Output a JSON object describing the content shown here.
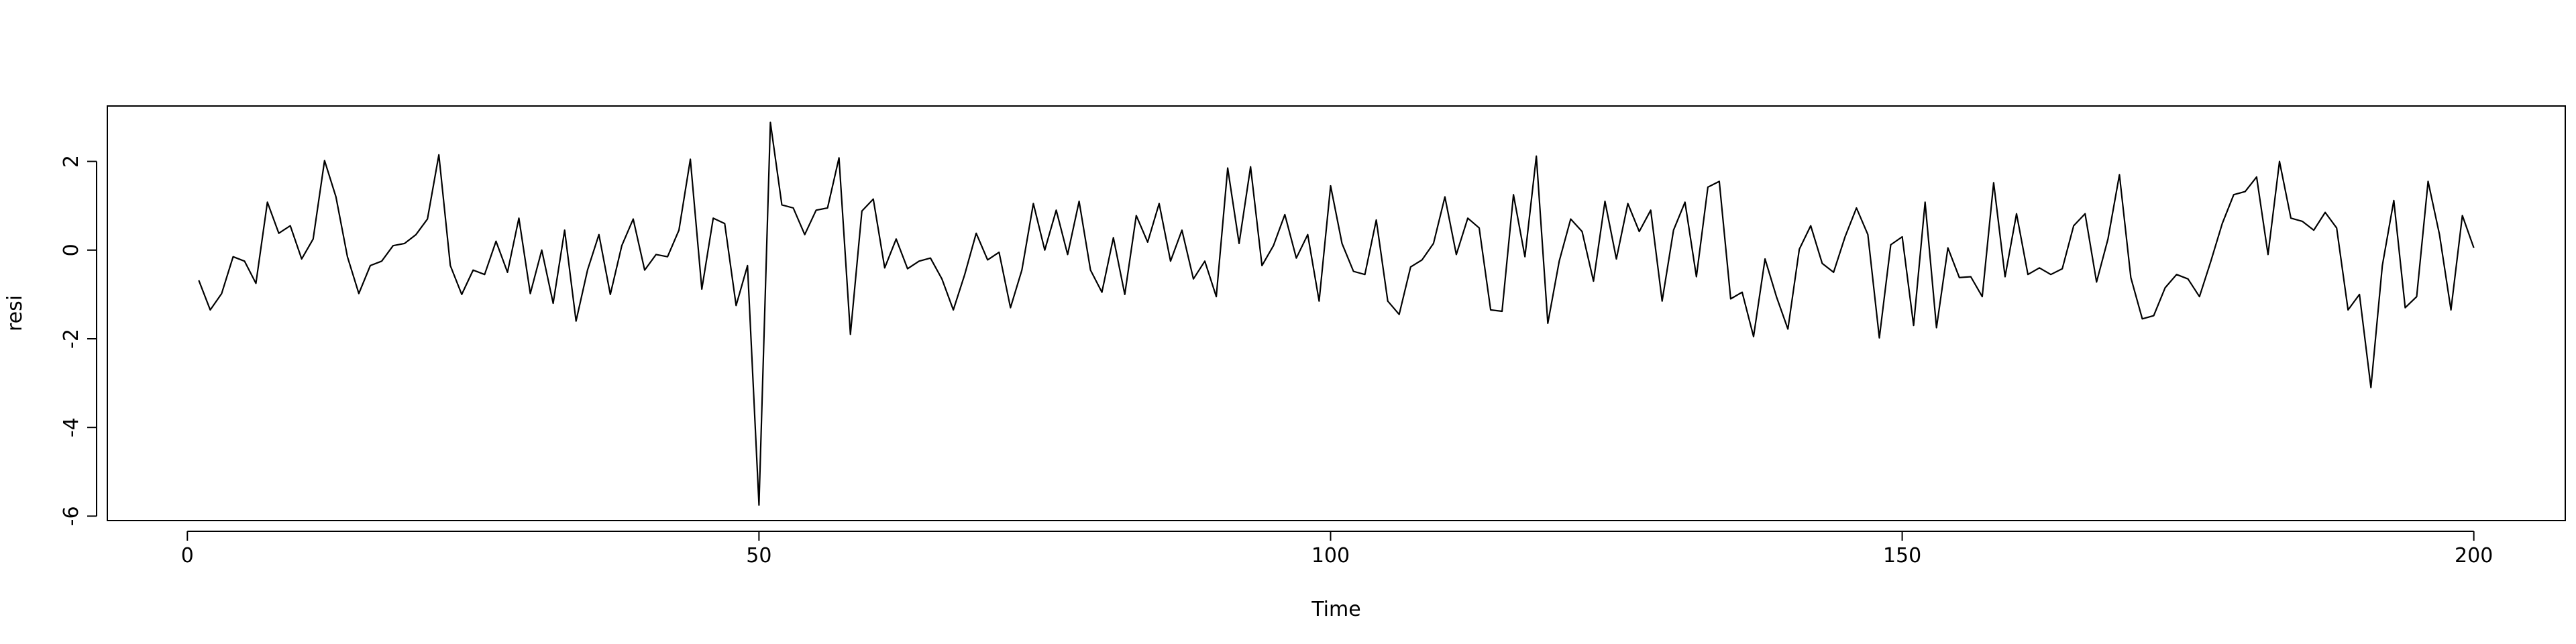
{
  "chart_data": {
    "type": "line",
    "title": "",
    "xlabel": "Time",
    "ylabel": "resi",
    "xlim": [
      -7,
      208
    ],
    "ylim": [
      -6.1,
      3.25
    ],
    "xticks": [
      0,
      50,
      100,
      150,
      200
    ],
    "yticks": [
      -6,
      -4,
      -2,
      0,
      2
    ],
    "grid": false,
    "line_color": "#000000",
    "series": [
      {
        "x_start": 1,
        "x_step": 1,
        "values": [
          -0.68,
          -1.35,
          -0.98,
          -0.15,
          -0.25,
          -0.75,
          1.08,
          0.38,
          0.55,
          -0.2,
          0.25,
          2.02,
          1.2,
          -0.15,
          -0.98,
          -0.35,
          -0.25,
          0.1,
          0.15,
          0.35,
          0.7,
          2.15,
          -0.35,
          -1.0,
          -0.45,
          -0.55,
          0.2,
          -0.5,
          0.72,
          -0.98,
          0.0,
          -1.2,
          0.45,
          -1.6,
          -0.45,
          0.35,
          -1.0,
          0.1,
          0.7,
          -0.45,
          -0.1,
          -0.15,
          0.45,
          2.05,
          -0.88,
          0.72,
          0.6,
          -1.25,
          -0.35,
          -5.75,
          2.88,
          1.02,
          0.95,
          0.35,
          0.9,
          0.95,
          2.08,
          -1.9,
          0.88,
          1.15,
          -0.4,
          0.25,
          -0.42,
          -0.25,
          -0.18,
          -0.65,
          -1.35,
          -0.55,
          0.38,
          -0.22,
          -0.05,
          -1.3,
          -0.45,
          1.05,
          0.0,
          0.9,
          -0.1,
          1.1,
          -0.45,
          -0.95,
          0.28,
          -1.0,
          0.78,
          0.18,
          1.05,
          -0.25,
          0.45,
          -0.65,
          -0.25,
          -1.05,
          1.85,
          0.15,
          1.88,
          -0.35,
          0.1,
          0.8,
          -0.18,
          0.35,
          -1.15,
          1.45,
          0.15,
          -0.48,
          -0.55,
          0.68,
          -1.15,
          -1.45,
          -0.38,
          -0.22,
          0.15,
          1.2,
          -0.1,
          0.72,
          0.5,
          -1.35,
          -1.38,
          1.25,
          -0.15,
          2.12,
          -1.65,
          -0.25,
          0.7,
          0.42,
          -0.7,
          1.1,
          -0.2,
          1.05,
          0.42,
          0.9,
          -1.15,
          0.45,
          1.08,
          -0.6,
          1.42,
          1.55,
          -1.1,
          -0.95,
          -1.95,
          -0.2,
          -1.05,
          -1.78,
          0.02,
          0.55,
          -0.3,
          -0.5,
          0.3,
          0.95,
          0.35,
          -1.98,
          0.12,
          0.3,
          -1.7,
          1.08,
          -1.75,
          0.05,
          -0.62,
          -0.6,
          -1.05,
          1.52,
          -0.6,
          0.82,
          -0.55,
          -0.4,
          -0.55,
          -0.42,
          0.55,
          0.82,
          -0.72,
          0.25,
          1.7,
          -0.62,
          -1.55,
          -1.48,
          -0.85,
          -0.55,
          -0.65,
          -1.05,
          -0.25,
          0.6,
          1.25,
          1.32,
          1.65,
          -0.1,
          2.0,
          0.72,
          0.65,
          0.45,
          0.85,
          0.5,
          -1.35,
          -1.0,
          -3.1,
          -0.35,
          1.12,
          -1.3,
          -1.05,
          1.55,
          0.35,
          -1.35,
          0.78,
          0.05
        ]
      }
    ]
  }
}
